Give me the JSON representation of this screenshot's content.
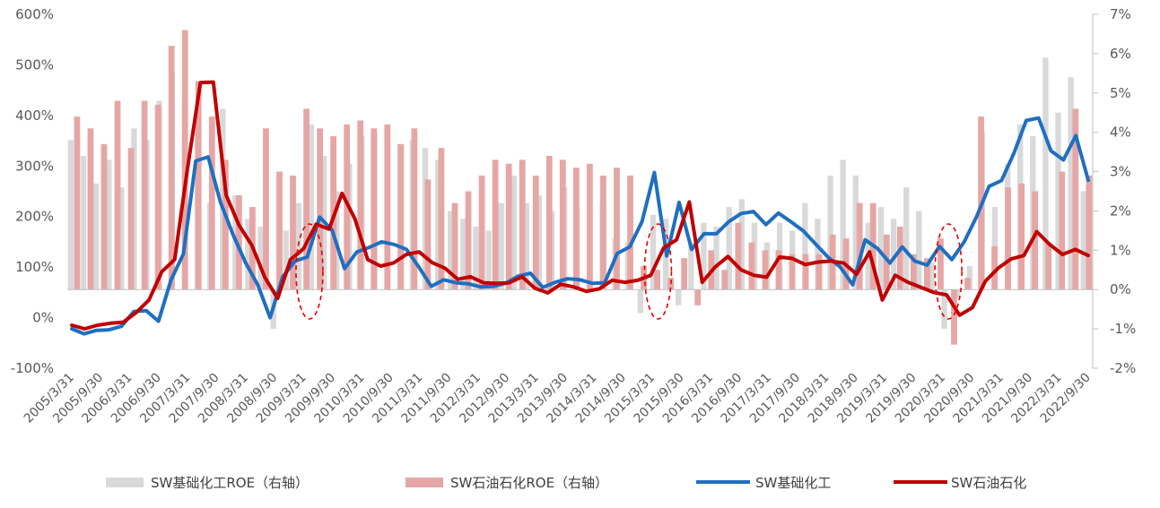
{
  "chart_data": {
    "type": "bar",
    "title": "",
    "xlabel": "",
    "ylabel": "",
    "ylim": [
      -100,
      600
    ],
    "y2lim": [
      -2,
      7
    ],
    "yticks": [
      "600%",
      "500%",
      "400%",
      "300%",
      "200%",
      "100%",
      "0%",
      "-100%"
    ],
    "y2ticks": [
      "7%",
      "6%",
      "5%",
      "4%",
      "3%",
      "2%",
      "1%",
      "0%",
      "-1%",
      "-2%"
    ],
    "xticks": [
      "2005/3/31",
      "2005/9/30",
      "2006/3/31",
      "2006/9/30",
      "2007/3/31",
      "2007/9/30",
      "2008/3/31",
      "2008/9/30",
      "2009/3/31",
      "2009/9/30",
      "2010/3/31",
      "2010/9/30",
      "2011/3/31",
      "2011/9/30",
      "2012/3/31",
      "2012/9/30",
      "2013/3/31",
      "2013/9/30",
      "2014/3/31",
      "2014/9/30",
      "2015/3/31",
      "2015/9/30",
      "2016/3/31",
      "2016/9/30",
      "2017/3/31",
      "2017/9/30",
      "2018/3/31",
      "2018/9/30",
      "2019/3/31",
      "2019/9/30",
      "2020/3/31",
      "2020/9/30",
      "2021/3/31",
      "2021/9/30",
      "2022/3/31",
      "2022/9/30"
    ],
    "legend_position": "bottom",
    "grid": false,
    "series": [
      {
        "name": "SW基础化工ROE（右轴）",
        "kind": "bar",
        "axis": "right",
        "color": "#d9d9d9",
        "values": [
          3.8,
          3.4,
          2.7,
          3.3,
          2.6,
          4.1,
          3.8,
          4.8,
          5.5,
          4.8,
          4.3,
          2.2,
          4.6,
          2.4,
          1.8,
          1.6,
          -1.0,
          1.5,
          2.2,
          4.2,
          3.4,
          2.5,
          3.2,
          3.9,
          4.0,
          3.8,
          3.7,
          3.8,
          3.6,
          3.3,
          2.0,
          1.8,
          1.6,
          1.5,
          2.2,
          2.9,
          2.2,
          2.4,
          2.0,
          2.6,
          2.1,
          1.7,
          2.2,
          1.3,
          1.2,
          -0.6,
          1.9,
          1.8,
          -0.4,
          1.2,
          1.7,
          1.6,
          2.1,
          2.3,
          1.7,
          1.2,
          1.7,
          1.5,
          2.2,
          1.8,
          2.9,
          3.3,
          2.9,
          1.7,
          2.1,
          1.8,
          2.6,
          2.0,
          0.7,
          -1.0,
          -0.2,
          0.6,
          4.0,
          2.1,
          3.2,
          4.2,
          3.9,
          5.9,
          4.5,
          5.4,
          2.5
        ],
        "note": "values listed per quarter from 2005/3/31"
      },
      {
        "name": "SW石油石化ROE（右轴）",
        "kind": "bar",
        "axis": "right",
        "color": "#e6a6a6",
        "values": [
          4.4,
          4.1,
          3.7,
          4.8,
          3.6,
          4.8,
          4.7,
          6.2,
          6.6,
          5.3,
          4.4,
          3.3,
          2.4,
          2.1,
          4.1,
          3.0,
          2.9,
          4.6,
          4.1,
          3.9,
          4.2,
          4.3,
          4.1,
          4.2,
          3.7,
          4.1,
          2.8,
          3.6,
          2.2,
          2.5,
          2.9,
          3.3,
          3.2,
          3.3,
          2.9,
          3.4,
          3.3,
          3.1,
          3.2,
          2.9,
          3.1,
          2.9,
          0.6,
          0.5,
          0.3,
          0.8,
          -0.4,
          1.0,
          0.5,
          1.7,
          1.2,
          1.0,
          1.0,
          0.9,
          0.9,
          0.9,
          1.4,
          1.3,
          2.2,
          2.2,
          1.4,
          1.6,
          0.9,
          0.8,
          1.3,
          -1.4,
          0.3,
          4.4,
          1.1,
          2.6,
          2.7,
          2.5,
          1.2,
          3.0,
          4.6,
          2.9
        ]
      },
      {
        "name": "SW基础化工",
        "kind": "line",
        "axis": "left",
        "color": "#1f6fc0",
        "values": [
          -22,
          -32,
          -25,
          -24,
          -17,
          12,
          14,
          -7,
          74,
          126,
          310,
          318,
          228,
          165,
          110,
          65,
          0,
          80,
          112,
          120,
          199,
          173,
          97,
          130,
          139,
          150,
          145,
          135,
          100,
          62,
          75,
          69,
          67,
          61,
          62,
          68,
          82,
          88,
          60,
          70,
          77,
          75,
          68,
          69,
          127,
          140,
          190,
          287,
          122,
          228,
          135,
          166,
          166,
          190,
          206,
          210,
          184,
          207,
          190,
          172,
          146,
          120,
          100,
          65,
          154,
          137,
          108,
          140,
          112,
          104,
          141,
          115,
          150,
          200,
          260,
          271,
          325,
          390,
          395,
          330,
          312,
          360,
          272
        ]
      },
      {
        "name": "SW石油石化",
        "kind": "line",
        "axis": "left",
        "color": "#c00000",
        "values": [
          -15,
          -22,
          -15,
          -11,
          -9,
          10,
          35,
          91,
          115,
          296,
          465,
          466,
          242,
          183,
          143,
          80,
          38,
          115,
          136,
          185,
          175,
          246,
          196,
          115,
          102,
          108,
          125,
          130,
          109,
          98,
          76,
          81,
          69,
          68,
          69,
          81,
          58,
          49,
          66,
          61,
          52,
          57,
          74,
          70,
          74,
          84,
          138,
          154,
          229,
          70,
          100,
          121,
          95,
          84,
          80,
          120,
          117,
          105,
          110,
          112,
          108,
          86,
          130,
          35,
          84,
          70,
          60,
          50,
          45,
          5,
          20,
          72,
          98,
          116,
          123,
          170,
          145,
          125,
          135,
          123
        ]
      }
    ],
    "annotations": [
      {
        "shape": "dashed-ellipse",
        "near": "2009/3/31"
      },
      {
        "shape": "dashed-ellipse",
        "near": "2015/3/31"
      },
      {
        "shape": "dashed-ellipse",
        "near": "2020/3/31"
      }
    ]
  },
  "legend": {
    "item1": "SW基础化工ROE（右轴）",
    "item2": "SW石油石化ROE（右轴）",
    "item3": "SW基础化工",
    "item4": "SW石油石化"
  }
}
